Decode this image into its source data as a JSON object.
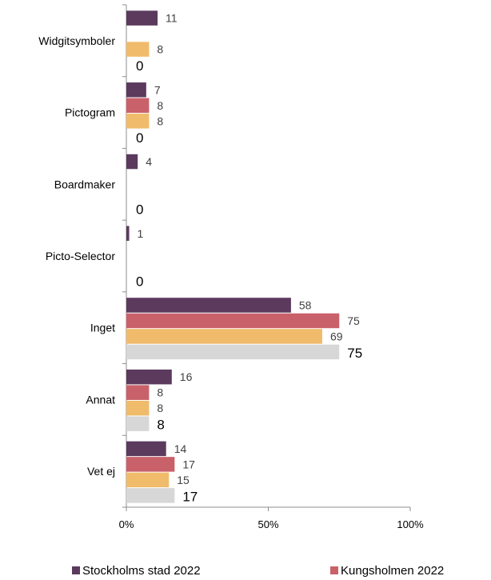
{
  "chart_data": {
    "type": "bar",
    "orientation": "horizontal",
    "categories": [
      "Widgitsymboler",
      "Pictogram",
      "Boardmaker",
      "Picto-Selector",
      "Inget",
      "Annat",
      "Vet ej"
    ],
    "series": [
      {
        "name": "Stockholms stad 2022",
        "color": "#5b3a5e",
        "values": [
          11,
          7,
          4,
          1,
          58,
          16,
          14
        ]
      },
      {
        "name": "Kungsholmen 2022",
        "color": "#c9616a",
        "values": [
          null,
          8,
          null,
          null,
          75,
          8,
          17
        ]
      },
      {
        "name": "",
        "color": "#f0bb6b",
        "values": [
          8,
          8,
          null,
          null,
          69,
          8,
          15
        ]
      },
      {
        "name": "",
        "color": "#d7d7d7",
        "values": [
          0,
          0,
          0,
          0,
          75,
          8,
          17
        ]
      }
    ],
    "xlim": [
      0,
      100
    ],
    "xticks": [
      0,
      50,
      100
    ],
    "xtick_labels": [
      "0%",
      "50%",
      "100%"
    ],
    "xlabel": "",
    "ylabel": "",
    "title": "",
    "grid": false,
    "legend": "bottom"
  }
}
